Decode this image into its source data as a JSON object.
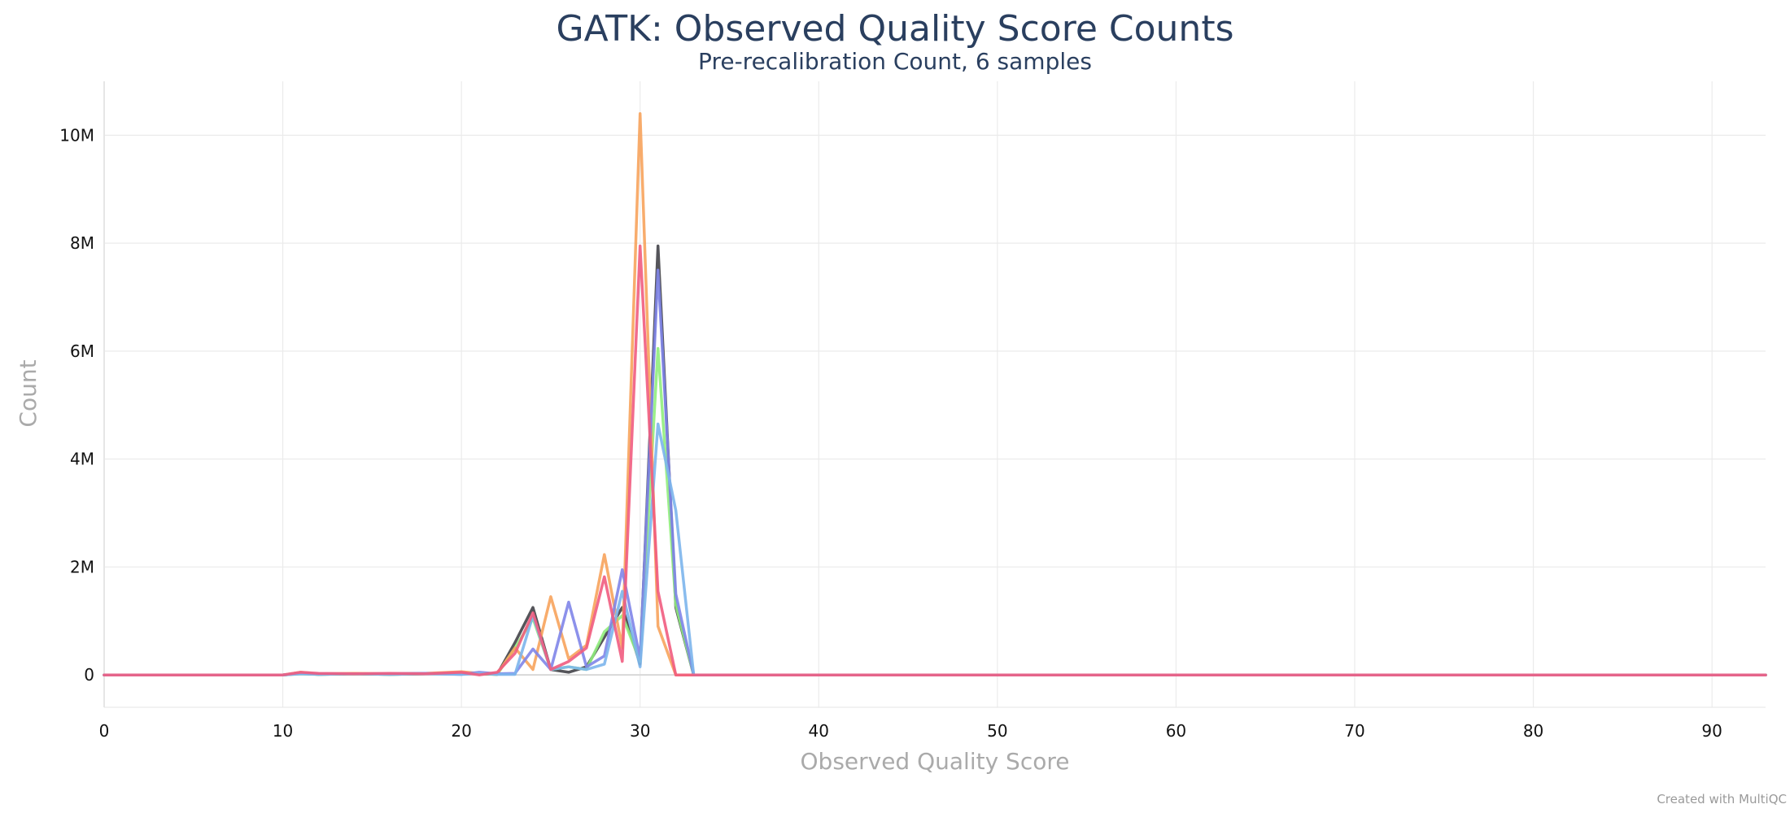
{
  "chart_data": {
    "type": "line",
    "title": "GATK: Observed Quality Score Counts",
    "subtitle": "Pre-recalibration Count, 6 samples",
    "xlabel": "Observed Quality Score",
    "ylabel": "Count",
    "xlim": [
      0,
      93
    ],
    "ylim": [
      -600000,
      11000000
    ],
    "x_ticks": [
      0,
      10,
      20,
      30,
      40,
      50,
      60,
      70,
      80,
      90
    ],
    "y_ticks": [
      0,
      2000000,
      4000000,
      6000000,
      8000000,
      10000000
    ],
    "y_tick_labels": [
      "0",
      "2M",
      "4M",
      "6M",
      "8M",
      "10M"
    ],
    "grid": true,
    "legend": "none",
    "credit": "Created with MultiQC",
    "x_end": 93,
    "series": [
      {
        "color": "#434348",
        "points": [
          [
            0,
            0
          ],
          [
            10,
            0
          ],
          [
            11,
            30000
          ],
          [
            12,
            10000
          ],
          [
            14,
            20000
          ],
          [
            16,
            10000
          ],
          [
            18,
            20000
          ],
          [
            20,
            30000
          ],
          [
            21,
            20000
          ],
          [
            22,
            10000
          ],
          [
            23,
            600000
          ],
          [
            24,
            1250000
          ],
          [
            25,
            100000
          ],
          [
            26,
            50000
          ],
          [
            27,
            150000
          ],
          [
            28,
            700000
          ],
          [
            29,
            1250000
          ],
          [
            30,
            200000
          ],
          [
            31,
            7950000
          ],
          [
            32,
            1250000
          ],
          [
            33,
            0
          ],
          [
            93,
            0
          ]
        ]
      },
      {
        "color": "#90ed7d",
        "points": [
          [
            0,
            0
          ],
          [
            10,
            0
          ],
          [
            11,
            20000
          ],
          [
            12,
            10000
          ],
          [
            14,
            20000
          ],
          [
            16,
            10000
          ],
          [
            18,
            20000
          ],
          [
            20,
            20000
          ],
          [
            21,
            20000
          ],
          [
            22,
            10000
          ],
          [
            23,
            500000
          ],
          [
            24,
            1050000
          ],
          [
            25,
            100000
          ],
          [
            26,
            150000
          ],
          [
            27,
            100000
          ],
          [
            28,
            800000
          ],
          [
            29,
            1100000
          ],
          [
            30,
            250000
          ],
          [
            31,
            6050000
          ],
          [
            32,
            1300000
          ],
          [
            33,
            0
          ],
          [
            93,
            0
          ]
        ]
      },
      {
        "color": "#f7a35c",
        "points": [
          [
            0,
            0
          ],
          [
            10,
            0
          ],
          [
            11,
            50000
          ],
          [
            12,
            20000
          ],
          [
            14,
            30000
          ],
          [
            16,
            20000
          ],
          [
            18,
            30000
          ],
          [
            20,
            60000
          ],
          [
            21,
            30000
          ],
          [
            22,
            20000
          ],
          [
            23,
            500000
          ],
          [
            24,
            100000
          ],
          [
            25,
            1450000
          ],
          [
            26,
            300000
          ],
          [
            27,
            550000
          ],
          [
            28,
            2230000
          ],
          [
            29,
            500000
          ],
          [
            30,
            10400000
          ],
          [
            31,
            900000
          ],
          [
            32,
            0
          ],
          [
            33,
            0
          ],
          [
            93,
            0
          ]
        ]
      },
      {
        "color": "#8085e9",
        "points": [
          [
            0,
            0
          ],
          [
            10,
            0
          ],
          [
            11,
            30000
          ],
          [
            12,
            20000
          ],
          [
            14,
            20000
          ],
          [
            16,
            20000
          ],
          [
            18,
            30000
          ],
          [
            20,
            10000
          ],
          [
            21,
            50000
          ],
          [
            22,
            20000
          ],
          [
            23,
            30000
          ],
          [
            24,
            480000
          ],
          [
            25,
            100000
          ],
          [
            26,
            1350000
          ],
          [
            27,
            150000
          ],
          [
            28,
            350000
          ],
          [
            29,
            1950000
          ],
          [
            30,
            300000
          ],
          [
            31,
            7500000
          ],
          [
            32,
            1500000
          ],
          [
            33,
            0
          ],
          [
            93,
            0
          ]
        ]
      },
      {
        "color": "#7cb5ec",
        "points": [
          [
            0,
            0
          ],
          [
            10,
            0
          ],
          [
            11,
            20000
          ],
          [
            12,
            10000
          ],
          [
            14,
            20000
          ],
          [
            16,
            10000
          ],
          [
            18,
            20000
          ],
          [
            20,
            10000
          ],
          [
            21,
            30000
          ],
          [
            22,
            10000
          ],
          [
            23,
            10000
          ],
          [
            24,
            1100000
          ],
          [
            25,
            100000
          ],
          [
            26,
            150000
          ],
          [
            27,
            100000
          ],
          [
            28,
            200000
          ],
          [
            29,
            1550000
          ],
          [
            30,
            150000
          ],
          [
            31,
            4650000
          ],
          [
            32,
            3050000
          ],
          [
            33,
            0
          ],
          [
            93,
            0
          ]
        ]
      },
      {
        "color": "#f15c80",
        "points": [
          [
            0,
            0
          ],
          [
            10,
            0
          ],
          [
            11,
            50000
          ],
          [
            12,
            30000
          ],
          [
            14,
            20000
          ],
          [
            16,
            30000
          ],
          [
            18,
            20000
          ],
          [
            20,
            50000
          ],
          [
            21,
            0
          ],
          [
            22,
            50000
          ],
          [
            23,
            400000
          ],
          [
            24,
            1150000
          ],
          [
            25,
            100000
          ],
          [
            26,
            250000
          ],
          [
            27,
            500000
          ],
          [
            28,
            1820000
          ],
          [
            29,
            250000
          ],
          [
            30,
            7950000
          ],
          [
            31,
            1550000
          ],
          [
            32,
            0
          ],
          [
            33,
            0
          ],
          [
            93,
            0
          ]
        ]
      }
    ]
  }
}
